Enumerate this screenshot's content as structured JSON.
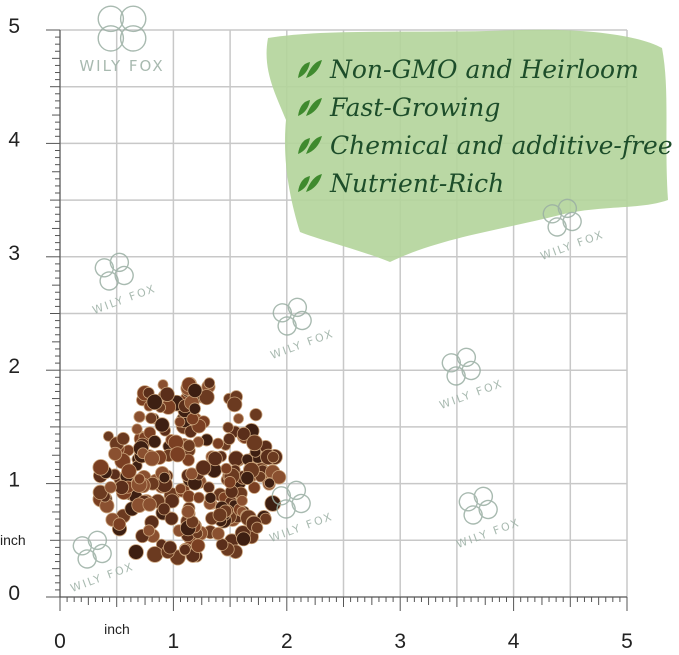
{
  "brand": "WILY FOX",
  "features": [
    "Non-GMO and Heirloom",
    "Fast-Growing",
    "Chemical and additive-free",
    "Nutrient-Rich"
  ],
  "x_ruler": {
    "labels": [
      0,
      1,
      2,
      3,
      4,
      5
    ],
    "unit": "inch"
  },
  "y_ruler": {
    "labels": [
      0,
      1,
      2,
      3,
      4,
      5
    ],
    "unit": "inch"
  }
}
